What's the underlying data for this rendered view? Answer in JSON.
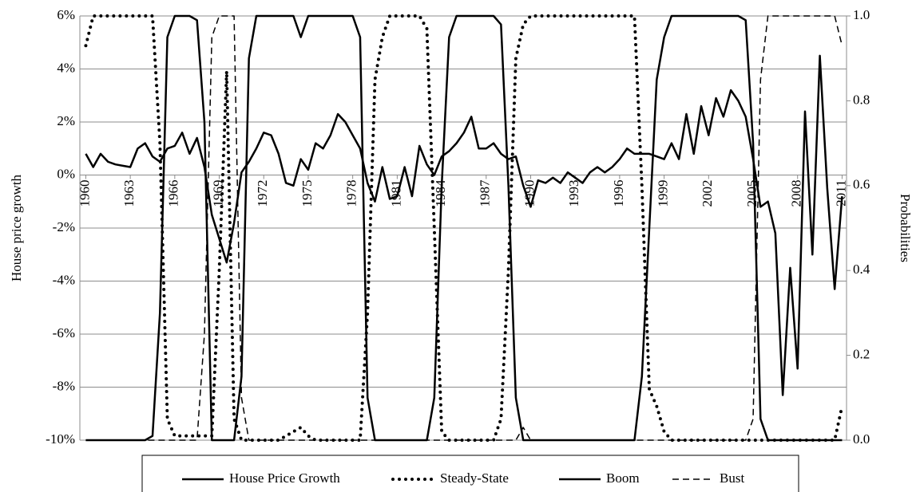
{
  "chart_data": {
    "type": "line",
    "y_label": "House price growth",
    "y2_label": "Probabilities",
    "legend": "bottom",
    "grid": true,
    "xlim": [
      1959.6,
      2011.3
    ],
    "xticks": [
      1960,
      1963,
      1966,
      1969,
      1972,
      1975,
      1978,
      1981,
      1984,
      1987,
      1990,
      1993,
      1996,
      1999,
      2002,
      2005,
      2008,
      2011
    ],
    "ylim": [
      -10,
      6
    ],
    "yticks": [
      {
        "value": -10,
        "label": "-10%"
      },
      {
        "value": -8,
        "label": "-8%"
      },
      {
        "value": -6,
        "label": "-6%"
      },
      {
        "value": -4,
        "label": "-4%"
      },
      {
        "value": -2,
        "label": "-2%"
      },
      {
        "value": 0,
        "label": "0%"
      },
      {
        "value": 2,
        "label": "2%"
      },
      {
        "value": 4,
        "label": "4%"
      },
      {
        "value": 6,
        "label": "6%"
      }
    ],
    "y2lim": [
      0,
      1
    ],
    "y2ticks": [
      {
        "value": 0,
        "label": "0.0"
      },
      0.2,
      0.4,
      0.6,
      0.8,
      {
        "value": 1,
        "label": "1.0"
      }
    ],
    "x": [
      1960,
      1960.5,
      1961,
      1961.5,
      1962,
      1962.5,
      1963,
      1963.5,
      1964,
      1964.5,
      1965,
      1965.5,
      1966,
      1966.5,
      1967,
      1967.5,
      1968,
      1968.5,
      1969,
      1969.5,
      1970,
      1970.5,
      1971,
      1971.5,
      1972,
      1972.5,
      1973,
      1973.5,
      1974,
      1974.5,
      1975,
      1975.5,
      1976,
      1976.5,
      1977,
      1977.5,
      1978,
      1978.5,
      1979,
      1979.5,
      1980,
      1980.5,
      1981,
      1981.5,
      1982,
      1982.5,
      1983,
      1983.5,
      1984,
      1984.5,
      1985,
      1985.5,
      1986,
      1986.5,
      1987,
      1987.5,
      1988,
      1988.5,
      1989,
      1989.5,
      1990,
      1990.5,
      1991,
      1991.5,
      1992,
      1992.5,
      1993,
      1993.5,
      1994,
      1994.5,
      1995,
      1995.5,
      1996,
      1996.5,
      1997,
      1997.5,
      1998,
      1998.5,
      1999,
      1999.5,
      2000,
      2000.5,
      2001,
      2001.5,
      2002,
      2002.5,
      2003,
      2003.5,
      2004,
      2004.5,
      2005,
      2005.5,
      2006,
      2006.5,
      2007,
      2007.5,
      2008,
      2008.5,
      2009,
      2009.5,
      2010,
      2010.5,
      2011
    ],
    "series": [
      {
        "name": "House Price Growth",
        "color": "#000000",
        "style": "solid",
        "axis": "y",
        "values": [
          0.8,
          0.3,
          0.8,
          0.5,
          0.4,
          0.35,
          0.3,
          1.0,
          1.2,
          0.7,
          0.5,
          1.0,
          1.1,
          1.6,
          0.8,
          1.4,
          0.3,
          -1.5,
          -2.4,
          -3.3,
          -1.8,
          0.1,
          0.5,
          1.0,
          1.6,
          1.5,
          0.8,
          -0.3,
          -0.4,
          0.6,
          0.2,
          1.2,
          1.0,
          1.5,
          2.3,
          2.0,
          1.5,
          1.0,
          -0.3,
          -1.0,
          0.3,
          -0.9,
          -0.8,
          0.3,
          -0.8,
          1.1,
          0.4,
          0.0,
          0.7,
          0.9,
          1.2,
          1.6,
          2.2,
          1.0,
          1.0,
          1.2,
          0.8,
          0.6,
          0.7,
          -0.4,
          -1.2,
          -0.2,
          -0.3,
          -0.1,
          -0.3,
          0.1,
          -0.1,
          -0.3,
          0.1,
          0.3,
          0.1,
          0.3,
          0.6,
          1.0,
          0.8,
          0.8,
          0.8,
          0.7,
          0.6,
          1.2,
          0.6,
          2.3,
          0.8,
          2.6,
          1.5,
          2.9,
          2.2,
          3.2,
          2.8,
          2.2,
          0.6,
          -1.2,
          -1.0,
          -2.2,
          -8.3,
          -3.5,
          -7.3,
          2.4,
          -3.0,
          4.5,
          -0.5,
          -4.3,
          -0.8
        ]
      },
      {
        "name": "Steady-State",
        "color": "#000000",
        "style": "dotted",
        "axis": "y2",
        "values": [
          0.93,
          1,
          1,
          1,
          1,
          1,
          1,
          1,
          1,
          1,
          0.7,
          0.05,
          0.01,
          0.01,
          0.01,
          0.01,
          0.01,
          0.01,
          0.4,
          0.87,
          0.05,
          0,
          0,
          0,
          0,
          0,
          0,
          0.01,
          0.02,
          0.03,
          0.01,
          0,
          0,
          0,
          0,
          0,
          0,
          0,
          0.3,
          0.85,
          0.95,
          1,
          1,
          1,
          1,
          1,
          0.97,
          0.5,
          0.02,
          0,
          0,
          0,
          0,
          0,
          0,
          0,
          0.05,
          0.4,
          0.9,
          0.98,
          1,
          1,
          1,
          1,
          1,
          1,
          1,
          1,
          1,
          1,
          1,
          1,
          1,
          1,
          1,
          0.6,
          0.12,
          0.08,
          0.02,
          0,
          0,
          0,
          0,
          0,
          0,
          0,
          0,
          0,
          0,
          0,
          0,
          0,
          0,
          0,
          0,
          0,
          0,
          0,
          0,
          0,
          0,
          0,
          0.08
        ]
      },
      {
        "name": "Boom",
        "color": "#000000",
        "style": "solid",
        "axis": "y2",
        "values": [
          0,
          0,
          0,
          0,
          0,
          0,
          0,
          0,
          0,
          0.01,
          0.3,
          0.95,
          1,
          1,
          1,
          0.99,
          0.75,
          0,
          0,
          0,
          0,
          0.15,
          0.9,
          1,
          1,
          1,
          1,
          1,
          1,
          0.95,
          1,
          1,
          1,
          1,
          1,
          1,
          1,
          0.95,
          0.1,
          0,
          0,
          0,
          0,
          0,
          0,
          0,
          0,
          0.1,
          0.6,
          0.95,
          1,
          1,
          1,
          1,
          1,
          1,
          0.98,
          0.6,
          0.1,
          0,
          0,
          0,
          0,
          0,
          0,
          0,
          0,
          0,
          0,
          0,
          0,
          0,
          0,
          0,
          0,
          0.15,
          0.5,
          0.85,
          0.95,
          1,
          1,
          1,
          1,
          1,
          1,
          1,
          1,
          1,
          1,
          0.99,
          0.7,
          0.05,
          0,
          0,
          0,
          0,
          0,
          0,
          0,
          0,
          0,
          0,
          0
        ]
      },
      {
        "name": "Bust",
        "color": "#000000",
        "style": "dashed",
        "axis": "y2",
        "values": [
          0,
          0,
          0,
          0,
          0,
          0,
          0,
          0,
          0,
          0,
          0,
          0,
          0,
          0,
          0,
          0,
          0.25,
          0.95,
          1,
          1,
          1,
          0.1,
          0,
          0,
          0,
          0,
          0,
          0,
          0,
          0,
          0,
          0,
          0,
          0,
          0,
          0,
          0,
          0,
          0,
          0,
          0,
          0,
          0,
          0,
          0,
          0,
          0,
          0,
          0,
          0,
          0,
          0,
          0,
          0,
          0,
          0,
          0,
          0,
          0,
          0.03,
          0,
          0,
          0,
          0,
          0,
          0,
          0,
          0,
          0,
          0,
          0,
          0,
          0,
          0,
          0,
          0,
          0,
          0,
          0,
          0,
          0,
          0,
          0,
          0,
          0,
          0,
          0,
          0,
          0,
          0,
          0.05,
          0.85,
          1,
          1,
          1,
          1,
          1,
          1,
          1,
          1,
          1,
          1,
          0.93
        ]
      }
    ]
  }
}
